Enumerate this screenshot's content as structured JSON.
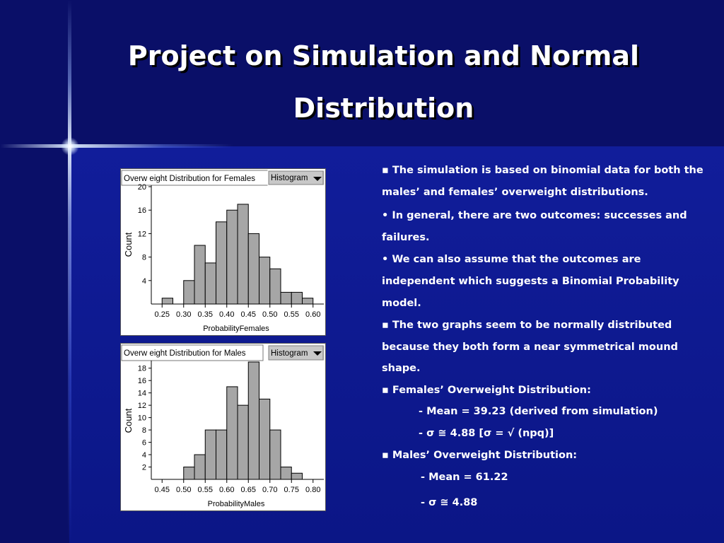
{
  "title_line1": "Project on Simulation and Normal",
  "title_line2": "Distribution",
  "chart_data": [
    {
      "type": "bar",
      "title": "Overw eight Distribution for Females",
      "button_label": "Histogram",
      "xlabel": "ProbabilityFemales",
      "ylabel": "Count",
      "x_ticks": [
        "0.25",
        "0.30",
        "0.35",
        "0.40",
        "0.45",
        "0.50",
        "0.55",
        "0.60"
      ],
      "y_ticks": [
        "4",
        "8",
        "12",
        "16",
        "20"
      ],
      "xlim": [
        0.225,
        0.625
      ],
      "ylim": [
        0,
        20
      ],
      "bin_width": 0.025,
      "bins": [
        {
          "x0": 0.25,
          "count": 1
        },
        {
          "x0": 0.275,
          "count": 0
        },
        {
          "x0": 0.3,
          "count": 4
        },
        {
          "x0": 0.325,
          "count": 10
        },
        {
          "x0": 0.35,
          "count": 7
        },
        {
          "x0": 0.375,
          "count": 14
        },
        {
          "x0": 0.4,
          "count": 16
        },
        {
          "x0": 0.425,
          "count": 17
        },
        {
          "x0": 0.45,
          "count": 12
        },
        {
          "x0": 0.475,
          "count": 8
        },
        {
          "x0": 0.5,
          "count": 6
        },
        {
          "x0": 0.525,
          "count": 2
        },
        {
          "x0": 0.55,
          "count": 2
        },
        {
          "x0": 0.575,
          "count": 1
        }
      ]
    },
    {
      "type": "bar",
      "title": "Overw eight Distribution for Males",
      "button_label": "Histogram",
      "xlabel": "ProbabilityMales",
      "ylabel": "Count",
      "x_ticks": [
        "0.45",
        "0.50",
        "0.55",
        "0.60",
        "0.65",
        "0.70",
        "0.75",
        "0.80"
      ],
      "y_ticks": [
        "2",
        "4",
        "6",
        "8",
        "10",
        "12",
        "14",
        "16",
        "18"
      ],
      "xlim": [
        0.425,
        0.825
      ],
      "ylim": [
        0,
        19
      ],
      "bin_width": 0.025,
      "bins": [
        {
          "x0": 0.475,
          "count": 0
        },
        {
          "x0": 0.5,
          "count": 2
        },
        {
          "x0": 0.525,
          "count": 4
        },
        {
          "x0": 0.55,
          "count": 8
        },
        {
          "x0": 0.575,
          "count": 8
        },
        {
          "x0": 0.6,
          "count": 15
        },
        {
          "x0": 0.625,
          "count": 12
        },
        {
          "x0": 0.65,
          "count": 19
        },
        {
          "x0": 0.675,
          "count": 13
        },
        {
          "x0": 0.7,
          "count": 8
        },
        {
          "x0": 0.725,
          "count": 2
        },
        {
          "x0": 0.75,
          "count": 1
        }
      ]
    }
  ],
  "bullets": [
    "▪ The simulation is based on binomial data for both the",
    "males’ and females’ overweight distributions.",
    "• In general, there are two outcomes: successes and",
    "failures.",
    "• We can also assume that the outcomes are",
    "independent which suggests a Binomial Probability",
    "model.",
    "▪ The two graphs seem to be normally distributed",
    "because they both form a near symmetrical mound",
    "shape.",
    "▪ Females’ Overweight Distribution:",
    "- Mean = 39.23 (derived from simulation)",
    "-  σ ≅ 4.88  [σ = √ (npq)]",
    "▪ Males’ Overweight Distribution:",
    "- Mean = 61.22",
    "-  σ ≅ 4.88"
  ]
}
